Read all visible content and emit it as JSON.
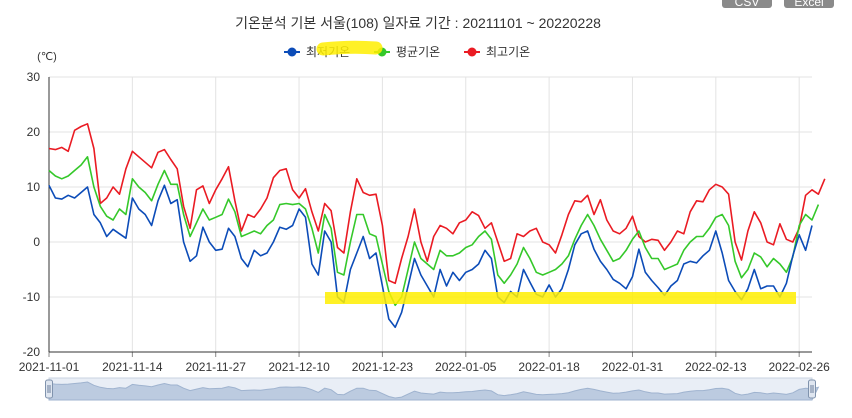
{
  "toolbar": {
    "csv_label": "CSV",
    "excel_label": "Excel"
  },
  "chart_data": {
    "type": "line",
    "title": "기온분석 기본 서울(108) 일자료 기간 : 20211101 ~ 20220228",
    "unit_label": "(℃)",
    "ylim": [
      -20,
      30
    ],
    "yticks": [
      -20,
      -10,
      0,
      10,
      20,
      30
    ],
    "xtick_labels": [
      "2021-11-01",
      "2021-11-14",
      "2021-11-27",
      "2021-12-10",
      "2021-12-23",
      "2022-01-05",
      "2022-01-18",
      "2022-01-31",
      "2022-02-13",
      "2022-02-26"
    ],
    "xtick_interval_days": 13,
    "grid": true,
    "legend_position": "top-center",
    "series": [
      {
        "name": "최저기온",
        "color": "#0c4cb8",
        "values": [
          10.3,
          8,
          7.8,
          8.5,
          8,
          9,
          10,
          5,
          3.5,
          1,
          2.3,
          1.5,
          0.7,
          8,
          6,
          5,
          3,
          7.5,
          10.3,
          7,
          7.7,
          0,
          -3.5,
          -2.5,
          2.7,
          0,
          -1.5,
          -1.3,
          2.5,
          1,
          -3,
          -4.5,
          -1.5,
          -2.5,
          -2,
          0,
          2.7,
          2.3,
          3,
          6,
          4.5,
          -4,
          -6,
          2,
          0,
          -10,
          -11,
          -5,
          -2,
          1,
          -3,
          -2,
          -8,
          -14,
          -15.5,
          -12.8,
          -8,
          -3,
          -6,
          -8,
          -10,
          -5,
          -8,
          -5.5,
          -7,
          -5.5,
          -5,
          -4,
          -1.5,
          -3,
          -10,
          -11,
          -9,
          -10,
          -5,
          -7.3,
          -9.5,
          -10,
          -7.8,
          -10,
          -8.5,
          -5,
          -0.5,
          1.5,
          2,
          -1.3,
          -3.5,
          -5,
          -6.8,
          -7.5,
          -8.5,
          -6.3,
          -1.3,
          -5.5,
          -7,
          -8.3,
          -9.7,
          -8,
          -7,
          -4,
          -3.5,
          -3.8,
          -2.5,
          -1.5,
          2,
          -2,
          -7,
          -9,
          -10.5,
          -8.5,
          -5,
          -8.5,
          -8,
          -8,
          -10,
          -7.5,
          -2.5,
          1.3,
          -1.5,
          3
        ]
      },
      {
        "name": "평균기온",
        "color": "#35c82a",
        "values": [
          13,
          12,
          11.5,
          12,
          13,
          14,
          15.5,
          10,
          6.5,
          4.7,
          4,
          6,
          5,
          11.5,
          10,
          9,
          7.5,
          10.5,
          13,
          10.5,
          10.5,
          5,
          1,
          3.5,
          6,
          4,
          4.5,
          5,
          7.8,
          5.5,
          1,
          1.5,
          2,
          1.5,
          3,
          4,
          6.8,
          7,
          6.8,
          7,
          6,
          2.5,
          -2,
          5,
          2.5,
          -5.5,
          -6,
          0,
          5,
          5,
          1.5,
          1,
          -4,
          -9,
          -11.5,
          -10,
          -5,
          0,
          -3,
          -4,
          -5,
          -1.5,
          -2.5,
          -2.5,
          -2,
          -1,
          -0.5,
          1,
          2,
          0.5,
          -6,
          -7.5,
          -6,
          -4,
          -1,
          -3,
          -5.5,
          -6,
          -5.5,
          -5,
          -4,
          -2.5,
          0.5,
          3,
          5,
          3,
          0.5,
          -1.5,
          -3.5,
          -3,
          -1.5,
          0.5,
          2,
          -1,
          -3,
          -3,
          -5,
          -4.5,
          -4,
          -1.5,
          0,
          1,
          1,
          2.5,
          4.5,
          5,
          3,
          -3.5,
          -6.5,
          -5,
          -2,
          -2.7,
          -4.5,
          -3,
          -4,
          -5.5,
          -2.7,
          3,
          5,
          4,
          6.8
        ]
      },
      {
        "name": "최고기온",
        "color": "#ea1b23",
        "values": [
          17,
          16.8,
          17.2,
          16.5,
          20.3,
          21,
          21.5,
          17,
          7,
          8,
          10,
          8.7,
          13.3,
          16.5,
          15.5,
          14.5,
          13.5,
          16.3,
          16.8,
          15,
          13.3,
          6.5,
          2.5,
          9.5,
          10.2,
          7,
          9.5,
          11.5,
          13.7,
          7.5,
          2,
          5,
          4.5,
          6,
          8,
          11.7,
          13,
          13.3,
          9.5,
          8,
          9.7,
          5.5,
          2,
          7,
          5.7,
          -1,
          -2,
          5.5,
          11.5,
          9,
          8.5,
          8.7,
          3,
          -7,
          -7.5,
          -3,
          1,
          6,
          0,
          -3.5,
          1,
          3,
          2.5,
          1.5,
          3.5,
          4,
          5.5,
          4.8,
          2.5,
          3.5,
          0,
          -3.5,
          -3,
          1.5,
          1,
          2,
          2.5,
          0,
          -0.5,
          -2,
          1.3,
          5,
          7.5,
          7.3,
          8.5,
          5,
          7.7,
          4,
          2,
          1.5,
          2.5,
          4.7,
          1,
          0,
          0.5,
          0.3,
          -1.5,
          0,
          2,
          1.5,
          5.5,
          7.5,
          7.3,
          9.5,
          10.5,
          10,
          8.7,
          0,
          -3.3,
          2,
          5.5,
          3.5,
          0,
          -0.5,
          3.3,
          0.5,
          0,
          2.5,
          8.5,
          9.5,
          8.7,
          11.5
        ]
      }
    ]
  }
}
